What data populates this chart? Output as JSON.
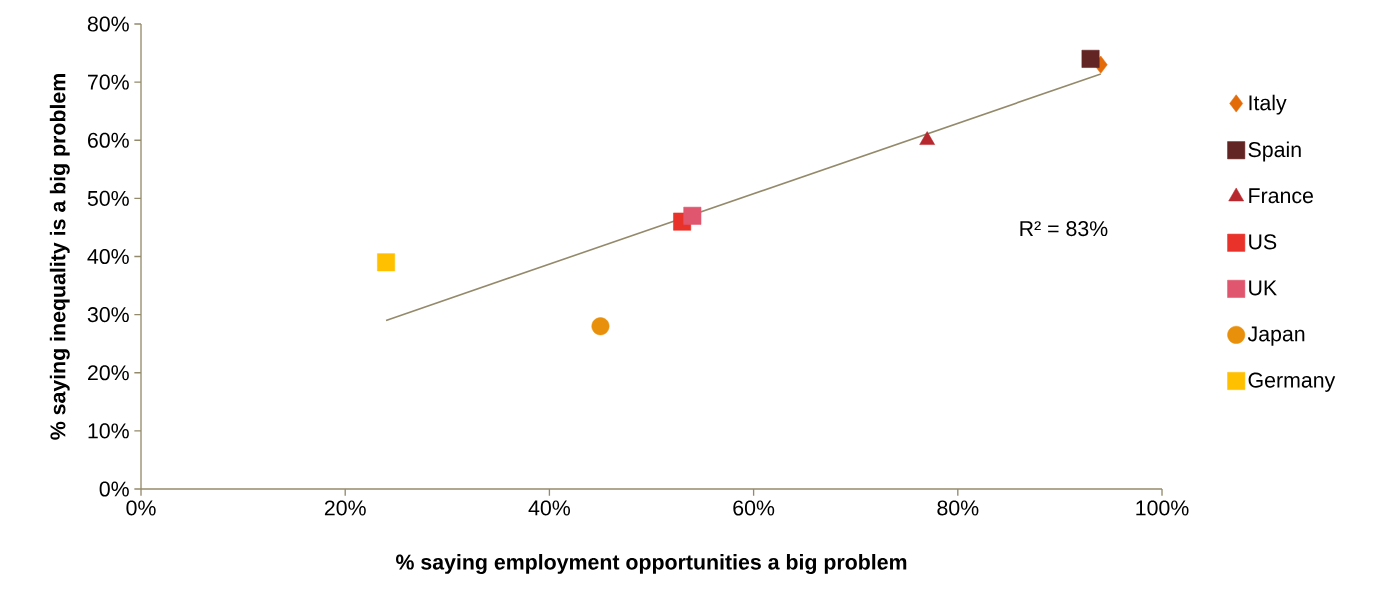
{
  "chart_data": {
    "type": "scatter",
    "xlabel": "% saying employment opportunities a big problem",
    "ylabel": "% saying inequality is a big problem",
    "xlim": [
      0,
      100
    ],
    "ylim": [
      0,
      80
    ],
    "xticks": [
      {
        "value": 0,
        "label": "0%"
      },
      {
        "value": 20,
        "label": "20%"
      },
      {
        "value": 40,
        "label": "40%"
      },
      {
        "value": 60,
        "label": "60%"
      },
      {
        "value": 80,
        "label": "80%"
      },
      {
        "value": 100,
        "label": "100%"
      }
    ],
    "yticks": [
      {
        "value": 0,
        "label": "0%"
      },
      {
        "value": 10,
        "label": "10%"
      },
      {
        "value": 20,
        "label": "20%"
      },
      {
        "value": 30,
        "label": "30%"
      },
      {
        "value": 40,
        "label": "40%"
      },
      {
        "value": 50,
        "label": "50%"
      },
      {
        "value": 60,
        "label": "60%"
      },
      {
        "value": 70,
        "label": "70%"
      },
      {
        "value": 80,
        "label": "80%"
      }
    ],
    "grid": false,
    "legend": "right",
    "annotations": [
      "R² = 83%"
    ],
    "series": [
      {
        "name": "Italy",
        "color": "#e36c09",
        "marker": "diamond",
        "x": [
          94
        ],
        "values": [
          73
        ]
      },
      {
        "name": "Spain",
        "color": "#632523",
        "marker": "square",
        "x": [
          93
        ],
        "values": [
          74
        ]
      },
      {
        "name": "France",
        "color": "#b7282e",
        "marker": "triangle",
        "x": [
          77
        ],
        "values": [
          60
        ]
      },
      {
        "name": "US",
        "color": "#e8322a",
        "marker": "square",
        "x": [
          53
        ],
        "values": [
          46
        ]
      },
      {
        "name": "UK",
        "color": "#e0566e",
        "marker": "square",
        "x": [
          54
        ],
        "values": [
          47
        ]
      },
      {
        "name": "Japan",
        "color": "#e8900c",
        "marker": "circle",
        "x": [
          45
        ],
        "values": [
          28
        ]
      },
      {
        "name": "Germany",
        "color": "#ffc000",
        "marker": "square",
        "x": [
          24
        ],
        "values": [
          39
        ]
      },
      {
        "type": "line",
        "color": "#948a6b",
        "marker": "none",
        "x": [
          24,
          94
        ],
        "values": [
          29,
          71.4
        ]
      }
    ]
  }
}
